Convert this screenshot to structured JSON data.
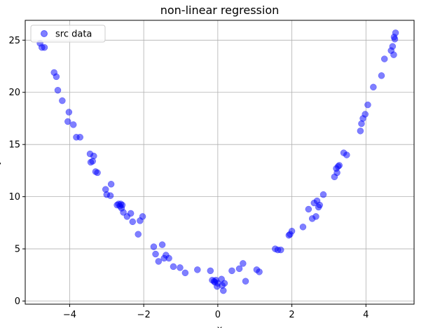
{
  "chart_data": {
    "type": "scatter",
    "title": "non-linear regression",
    "xlabel": "x",
    "ylabel": "y",
    "xlim": [
      -5.2,
      5.3
    ],
    "ylim": [
      -0.3,
      26.9
    ],
    "xticks": [
      -4,
      -2,
      0,
      2,
      4
    ],
    "yticks": [
      0,
      5,
      10,
      15,
      20,
      25
    ],
    "xtick_labels": [
      "−4",
      "−2",
      "0",
      "2",
      "4"
    ],
    "ytick_labels": [
      "0",
      "5",
      "10",
      "15",
      "20",
      "25"
    ],
    "grid": true,
    "legend": {
      "position": "top-left",
      "entries": [
        "src data"
      ]
    },
    "series": [
      {
        "name": "src data",
        "color": "#0000ff",
        "alpha": 0.5,
        "x": [
          -4.8,
          -4.75,
          -4.68,
          -4.42,
          -4.36,
          -4.32,
          -4.2,
          -4.05,
          -4.02,
          -3.9,
          -3.82,
          -3.72,
          -3.45,
          -3.43,
          -3.38,
          -3.35,
          -3.3,
          -3.25,
          -3.03,
          -3.0,
          -2.9,
          -2.88,
          -2.72,
          -2.68,
          -2.64,
          -2.62,
          -2.6,
          -2.58,
          -2.55,
          -2.45,
          -2.35,
          -2.3,
          -2.15,
          -2.1,
          -2.03,
          -1.73,
          -1.68,
          -1.6,
          -1.5,
          -1.45,
          -1.4,
          -1.32,
          -1.2,
          -1.02,
          -0.88,
          -0.55,
          -0.2,
          -0.15,
          -0.1,
          -0.08,
          -0.05,
          -0.02,
          0.0,
          0.1,
          0.12,
          0.15,
          0.18,
          0.38,
          0.58,
          0.68,
          0.75,
          1.05,
          1.12,
          1.55,
          1.62,
          1.7,
          1.92,
          1.95,
          2.0,
          2.3,
          2.45,
          2.55,
          2.6,
          2.65,
          2.68,
          2.72,
          2.75,
          2.85,
          3.15,
          3.2,
          3.22,
          3.25,
          3.28,
          3.4,
          3.48,
          3.85,
          3.88,
          3.92,
          3.98,
          4.05,
          4.2,
          4.42,
          4.5,
          4.68,
          4.72,
          4.75,
          4.76,
          4.78,
          4.8
        ],
        "y": [
          24.7,
          24.3,
          24.3,
          21.9,
          21.5,
          20.2,
          19.2,
          17.2,
          18.1,
          16.9,
          15.7,
          15.7,
          14.1,
          13.3,
          13.4,
          13.9,
          12.4,
          12.3,
          10.7,
          10.2,
          10.1,
          11.2,
          9.2,
          9.3,
          9.1,
          9.3,
          8.9,
          9.2,
          8.5,
          8.1,
          8.4,
          7.6,
          6.4,
          7.7,
          8.1,
          5.2,
          4.5,
          3.8,
          5.4,
          4.1,
          4.4,
          4.1,
          3.3,
          3.2,
          2.7,
          3.0,
          2.9,
          2.0,
          1.9,
          1.8,
          2.0,
          1.4,
          1.7,
          2.1,
          1.5,
          1.0,
          1.7,
          2.9,
          3.1,
          3.6,
          1.9,
          3.0,
          2.8,
          5.0,
          4.9,
          4.9,
          6.3,
          6.4,
          6.7,
          7.1,
          8.8,
          7.9,
          9.4,
          8.1,
          9.6,
          9.0,
          9.2,
          10.2,
          11.9,
          12.7,
          12.3,
          12.9,
          13.0,
          14.2,
          14.0,
          16.3,
          17.0,
          17.5,
          17.9,
          18.8,
          20.5,
          21.6,
          23.2,
          24.0,
          24.4,
          23.6,
          25.3,
          25.1,
          25.7
        ]
      }
    ]
  }
}
